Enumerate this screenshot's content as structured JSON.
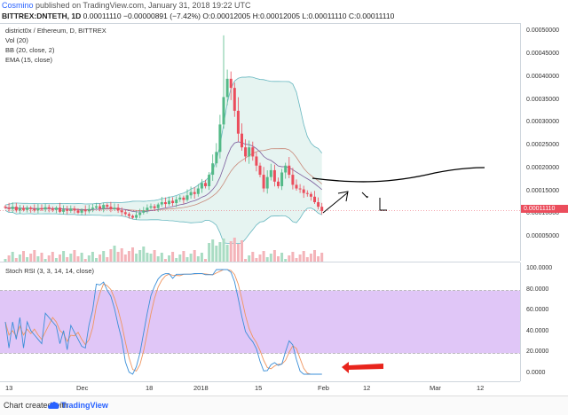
{
  "header": {
    "user": "Cosmino",
    "published": "published on TradingView.com, January 31, 2018 19:22 UTC",
    "symbol": "BITTREX:DNTETH, 1D",
    "change": "0.00011110 −0.00000891 (−7.42%)",
    "ohlc": "O:0.00012005 H:0.00012005 L:0.00011110 C:0.00011110"
  },
  "legend": {
    "title": "district0x / Ethereum, D, BITTREX",
    "vol": "Vol (20)",
    "bb": "BB (20, close, 2)",
    "ema": "EMA (15, close)",
    "rsi": "Stoch RSI (3, 3, 14, 14, close)"
  },
  "price_axis": [
    "0.00050000",
    "0.00045000",
    "0.00040000",
    "0.00035000",
    "0.00030000",
    "0.00025000",
    "0.00020000",
    "0.00015000",
    "0.00010000",
    "0.00005000"
  ],
  "current_price": "0.00011110",
  "rsi_axis": [
    "100.0000",
    "80.0000",
    "60.0000",
    "40.0000",
    "20.0000",
    "0.0000"
  ],
  "x_axis": [
    "13",
    "Dec",
    "18",
    "2018",
    "15",
    "Feb",
    "12",
    "Mar",
    "12"
  ],
  "footer": {
    "made_with": "Chart created with",
    "brand": "TradingView"
  },
  "colors": {
    "up": "#53b987",
    "down": "#eb4d5c",
    "band": "#e6f4f1",
    "band_line": "#67b7c0",
    "rsi_zone": "#e0c6f7",
    "rsi_k": "#3b8fd8",
    "rsi_d": "#f0955f",
    "arrow": "#e8241c"
  },
  "chart_data": {
    "type": "candlestick",
    "title": "district0x / Ethereum, D, BITTREX",
    "ylim": [
      0,
      0.00052
    ],
    "rsi_ylim": [
      0,
      100
    ],
    "closes": [
      0.000118,
      0.000115,
      0.00012,
      0.000112,
      0.000117,
      0.000113,
      0.000118,
      0.000115,
      0.000112,
      0.000117,
      0.000114,
      0.000119,
      0.000116,
      0.000113,
      0.000118,
      0.000109,
      0.000114,
      0.000111,
      0.000116,
      0.000112,
      0.000107,
      0.000113,
      0.00011,
      0.000115,
      0.000118,
      0.000121,
      0.000116,
      0.000124,
      0.00012,
      0.000115,
      0.000118,
      0.000112,
      0.000108,
      0.000104,
      0.0001,
      9.6e-05,
      0.000102,
      0.000107,
      0.000112,
      0.000118,
      0.000121,
      0.000117,
      0.000125,
      0.00013,
      0.000126,
      0.000133,
      0.000128,
      0.000136,
      0.00014,
      0.000135,
      0.000145,
      0.000152,
      0.000148,
      0.00016,
      0.000172,
      0.000165,
      0.00019,
      0.000215,
      0.00024,
      0.0003,
      0.00036,
      0.0004,
      0.00038,
      0.00033,
      0.00028,
      0.00025,
      0.00023,
      0.00025,
      0.00023,
      0.00021,
      0.00019,
      0.00016,
      0.000185,
      0.0002,
      0.000175,
      0.000165,
      0.000195,
      0.00021,
      0.00019,
      0.000168,
      0.00016,
      0.000158,
      0.00015,
      0.000148,
      0.000142,
      0.00013,
      0.00012,
      0.000111
    ]
  }
}
